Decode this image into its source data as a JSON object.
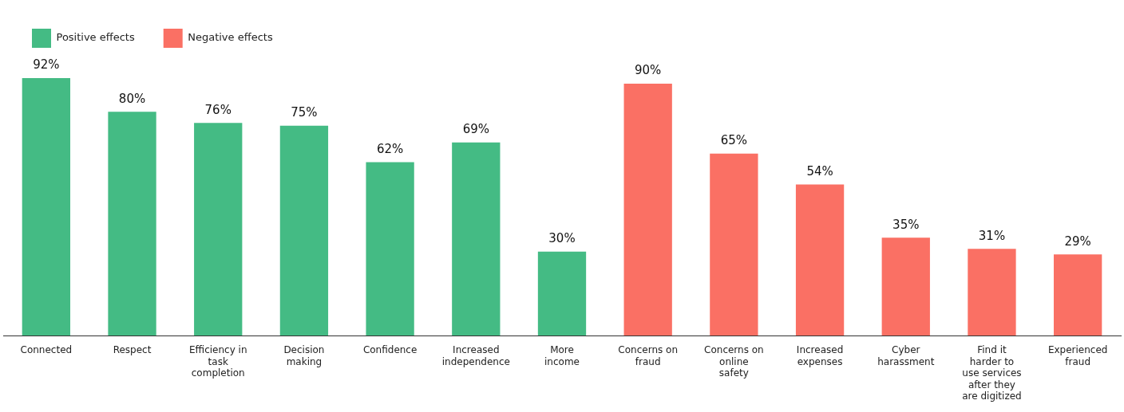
{
  "chart_data": {
    "type": "bar",
    "categories": [
      "Connected",
      "Respect",
      "Efficiency in task completion",
      "Decision making",
      "Confidence",
      "Increased independence",
      "More income",
      "Concerns on fraud",
      "Concerns on online safety",
      "Increased expenses",
      "Cyber harassment",
      "Find it harder to use services after they are digitized",
      "Experienced fraud"
    ],
    "series": [
      {
        "name": "Positive effects",
        "color": "#44bb84",
        "values": [
          92,
          80,
          76,
          75,
          62,
          69,
          30,
          null,
          null,
          null,
          null,
          null,
          null
        ],
        "value_labels": [
          "92%",
          "80%",
          "76%",
          "75%",
          "62%",
          "69%",
          "30%",
          null,
          null,
          null,
          null,
          null,
          null
        ]
      },
      {
        "name": "Negative effects",
        "color": "#fa7064",
        "values": [
          null,
          null,
          null,
          null,
          null,
          null,
          null,
          90,
          65,
          54,
          35,
          31,
          29
        ],
        "value_labels": [
          null,
          null,
          null,
          null,
          null,
          null,
          null,
          "90%",
          "65%",
          "54%",
          "35%",
          "31%",
          "29%"
        ]
      }
    ],
    "grid": false,
    "legend": "top left"
  }
}
